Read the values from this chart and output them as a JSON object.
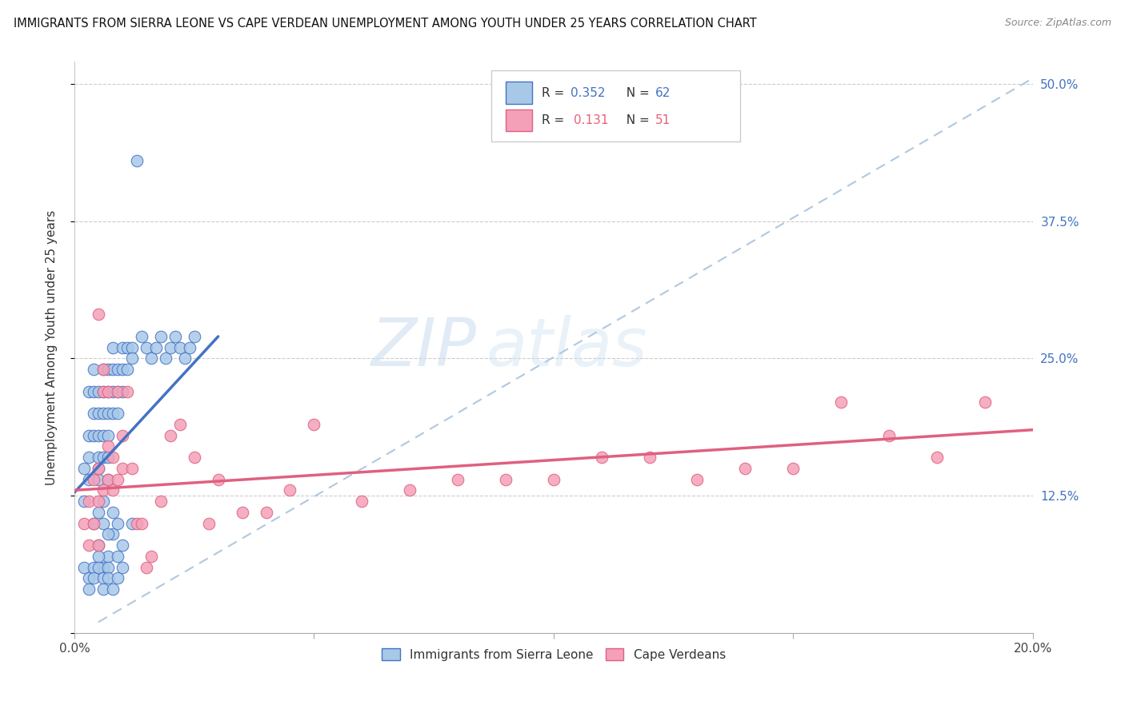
{
  "title": "IMMIGRANTS FROM SIERRA LEONE VS CAPE VERDEAN UNEMPLOYMENT AMONG YOUTH UNDER 25 YEARS CORRELATION CHART",
  "source": "Source: ZipAtlas.com",
  "ylabel": "Unemployment Among Youth under 25 years",
  "xlim": [
    0.0,
    0.2
  ],
  "ylim": [
    0.0,
    0.52
  ],
  "color_blue": "#A8C8E8",
  "color_pink": "#F4A0B8",
  "line_blue": "#4472C4",
  "line_pink": "#E06080",
  "dashed_line_color": "#B0C8E0",
  "watermark_zip": "ZIP",
  "watermark_atlas": "atlas",
  "blue_scatter_x": [
    0.002,
    0.002,
    0.003,
    0.003,
    0.003,
    0.003,
    0.004,
    0.004,
    0.004,
    0.004,
    0.005,
    0.005,
    0.005,
    0.005,
    0.005,
    0.005,
    0.006,
    0.006,
    0.006,
    0.006,
    0.006,
    0.007,
    0.007,
    0.007,
    0.007,
    0.007,
    0.007,
    0.008,
    0.008,
    0.008,
    0.008,
    0.009,
    0.009,
    0.009,
    0.01,
    0.01,
    0.01,
    0.011,
    0.011,
    0.012,
    0.012,
    0.013,
    0.014,
    0.015,
    0.016,
    0.017,
    0.018,
    0.019,
    0.02,
    0.021,
    0.022,
    0.023,
    0.024,
    0.025,
    0.004,
    0.005,
    0.006,
    0.007,
    0.008,
    0.009,
    0.01,
    0.012
  ],
  "blue_scatter_y": [
    0.15,
    0.12,
    0.22,
    0.18,
    0.16,
    0.14,
    0.2,
    0.18,
    0.22,
    0.24,
    0.2,
    0.22,
    0.18,
    0.16,
    0.14,
    0.15,
    0.22,
    0.24,
    0.2,
    0.18,
    0.16,
    0.22,
    0.24,
    0.2,
    0.18,
    0.16,
    0.14,
    0.22,
    0.24,
    0.2,
    0.26,
    0.24,
    0.22,
    0.2,
    0.26,
    0.24,
    0.22,
    0.26,
    0.24,
    0.26,
    0.25,
    0.43,
    0.27,
    0.26,
    0.25,
    0.26,
    0.27,
    0.25,
    0.26,
    0.27,
    0.26,
    0.25,
    0.26,
    0.27,
    0.1,
    0.08,
    0.06,
    0.07,
    0.09,
    0.07,
    0.08,
    0.1
  ],
  "blue_scatter_x2": [
    0.002,
    0.003,
    0.003,
    0.004,
    0.004,
    0.005,
    0.005,
    0.006,
    0.006,
    0.007,
    0.007,
    0.008,
    0.009,
    0.01,
    0.005,
    0.006,
    0.006,
    0.007,
    0.008,
    0.009
  ],
  "blue_scatter_y2": [
    0.06,
    0.05,
    0.04,
    0.06,
    0.05,
    0.07,
    0.06,
    0.05,
    0.04,
    0.06,
    0.05,
    0.04,
    0.05,
    0.06,
    0.11,
    0.12,
    0.1,
    0.09,
    0.11,
    0.1
  ],
  "pink_scatter_x": [
    0.002,
    0.003,
    0.003,
    0.004,
    0.004,
    0.005,
    0.005,
    0.005,
    0.006,
    0.006,
    0.007,
    0.007,
    0.007,
    0.008,
    0.008,
    0.009,
    0.009,
    0.01,
    0.01,
    0.011,
    0.012,
    0.013,
    0.014,
    0.015,
    0.016,
    0.018,
    0.02,
    0.022,
    0.025,
    0.028,
    0.03,
    0.035,
    0.04,
    0.045,
    0.05,
    0.06,
    0.07,
    0.08,
    0.09,
    0.1,
    0.11,
    0.12,
    0.13,
    0.14,
    0.15,
    0.16,
    0.17,
    0.18,
    0.19,
    0.005,
    0.006
  ],
  "pink_scatter_y": [
    0.1,
    0.12,
    0.08,
    0.14,
    0.1,
    0.12,
    0.15,
    0.08,
    0.13,
    0.22,
    0.14,
    0.17,
    0.22,
    0.13,
    0.16,
    0.14,
    0.22,
    0.15,
    0.18,
    0.22,
    0.15,
    0.1,
    0.1,
    0.06,
    0.07,
    0.12,
    0.18,
    0.19,
    0.16,
    0.1,
    0.14,
    0.11,
    0.11,
    0.13,
    0.19,
    0.12,
    0.13,
    0.14,
    0.14,
    0.14,
    0.16,
    0.16,
    0.14,
    0.15,
    0.15,
    0.21,
    0.18,
    0.16,
    0.21,
    0.29,
    0.24
  ],
  "blue_line_x0": 0.0,
  "blue_line_y0": 0.128,
  "blue_line_x1": 0.03,
  "blue_line_y1": 0.27,
  "pink_line_x0": 0.0,
  "pink_line_y0": 0.13,
  "pink_line_x1": 0.2,
  "pink_line_y1": 0.185,
  "dash_line_x0": 0.005,
  "dash_line_y0": 0.01,
  "dash_line_x1": 0.2,
  "dash_line_y1": 0.505
}
